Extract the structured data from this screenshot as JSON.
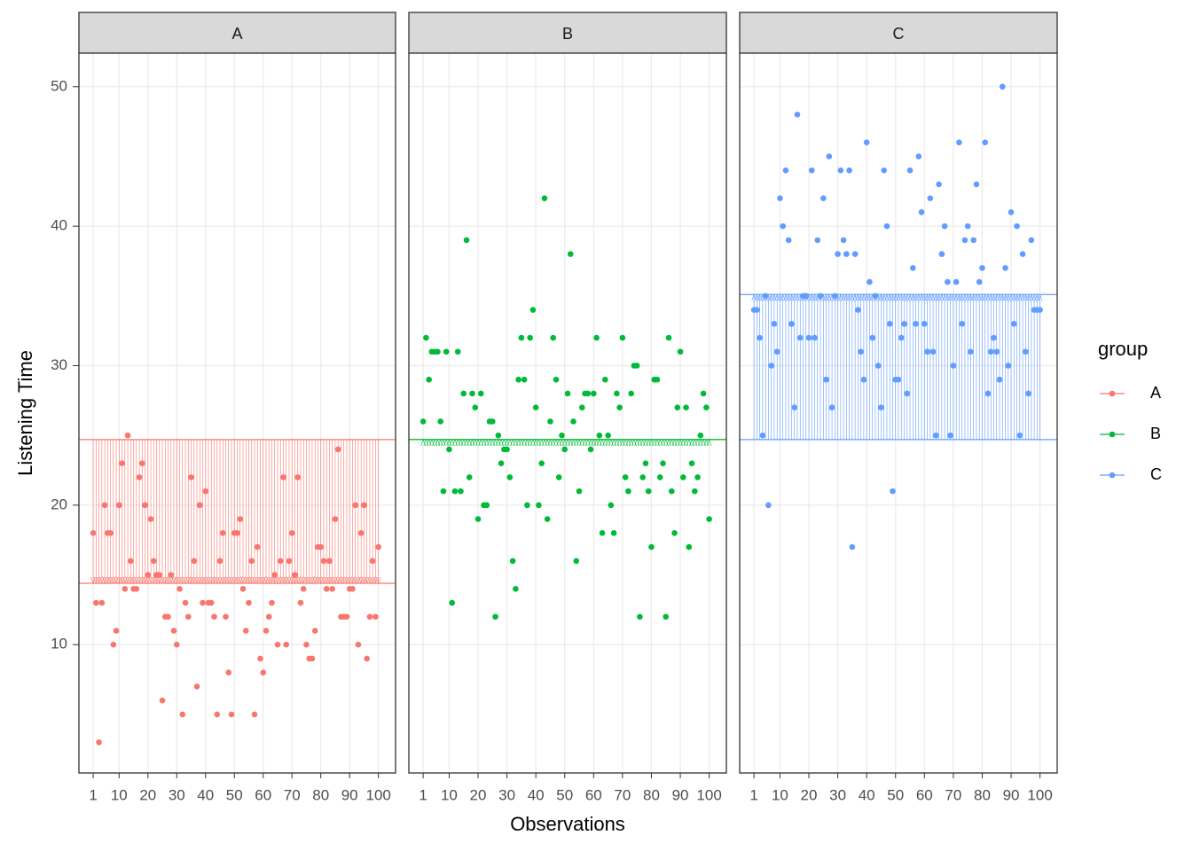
{
  "chart_data": {
    "type": "scatter",
    "x_label": "Observations",
    "y_label": "Listening Time",
    "legend_title": "group",
    "xlim": [
      -3.95,
      105.95
    ],
    "ylim": [
      0.8,
      52.4
    ],
    "xticks": [
      1,
      10,
      20,
      30,
      40,
      50,
      60,
      70,
      80,
      90,
      100
    ],
    "yticks": [
      10,
      20,
      30,
      40,
      50
    ],
    "grid": true,
    "grand_mean": 24.7,
    "x": [
      1,
      2,
      3,
      4,
      5,
      6,
      7,
      8,
      9,
      10,
      11,
      12,
      13,
      14,
      15,
      16,
      17,
      18,
      19,
      20,
      21,
      22,
      23,
      24,
      25,
      26,
      27,
      28,
      29,
      30,
      31,
      32,
      33,
      34,
      35,
      36,
      37,
      38,
      39,
      40,
      41,
      42,
      43,
      44,
      45,
      46,
      47,
      48,
      49,
      50,
      51,
      52,
      53,
      54,
      55,
      56,
      57,
      58,
      59,
      60,
      61,
      62,
      63,
      64,
      65,
      66,
      67,
      68,
      69,
      70,
      71,
      72,
      73,
      74,
      75,
      76,
      77,
      78,
      79,
      80,
      81,
      82,
      83,
      84,
      85,
      86,
      87,
      88,
      89,
      90,
      91,
      92,
      93,
      94,
      95,
      96,
      97,
      98,
      99,
      100
    ],
    "panels": [
      {
        "name": "A",
        "color": "#F8766D",
        "mean": 14.4,
        "values": [
          18,
          13,
          3,
          13,
          20,
          18,
          18,
          10,
          11,
          20,
          23,
          14,
          25,
          16,
          14,
          14,
          22,
          23,
          20,
          15,
          19,
          16,
          15,
          15,
          6,
          12,
          12,
          15,
          11,
          10,
          14,
          5,
          13,
          12,
          22,
          16,
          7,
          20,
          13,
          21,
          13,
          13,
          12,
          5,
          16,
          18,
          12,
          8,
          5,
          18,
          18,
          19,
          14,
          11,
          13,
          16,
          5,
          17,
          9,
          8,
          11,
          12,
          13,
          15,
          10,
          16,
          22,
          10,
          16,
          18,
          15,
          22,
          13,
          14,
          10,
          9,
          9,
          11,
          17,
          17,
          16,
          14,
          16,
          14,
          19,
          24,
          12,
          12,
          12,
          14,
          14,
          20,
          10,
          18,
          20,
          9,
          12,
          16,
          12,
          17
        ]
      },
      {
        "name": "B",
        "color": "#00BA38",
        "mean": 24.7,
        "values": [
          26,
          32,
          29,
          31,
          31,
          31,
          26,
          21,
          31,
          24,
          13,
          21,
          31,
          21,
          28,
          39,
          22,
          28,
          27,
          19,
          28,
          20,
          20,
          26,
          26,
          12,
          25,
          23,
          24,
          24,
          22,
          16,
          14,
          29,
          32,
          29,
          20,
          32,
          34,
          27,
          20,
          23,
          42,
          19,
          26,
          32,
          29,
          22,
          25,
          24,
          28,
          38,
          26,
          16,
          21,
          27,
          28,
          28,
          24,
          28,
          32,
          25,
          18,
          29,
          25,
          20,
          18,
          28,
          27,
          32,
          22,
          21,
          28,
          30,
          30,
          12,
          22,
          23,
          21,
          17,
          29,
          29,
          22,
          23,
          12,
          32,
          21,
          18,
          27,
          31,
          22,
          27,
          17,
          23,
          21,
          22,
          25,
          28,
          27,
          19
        ]
      },
      {
        "name": "C",
        "color": "#619CFF",
        "mean": 35.1,
        "values": [
          34,
          34,
          32,
          25,
          35,
          20,
          30,
          33,
          31,
          42,
          40,
          44,
          39,
          33,
          27,
          48,
          32,
          35,
          35,
          32,
          44,
          32,
          39,
          35,
          42,
          29,
          45,
          27,
          35,
          38,
          44,
          39,
          38,
          44,
          17,
          38,
          34,
          31,
          29,
          46,
          36,
          32,
          35,
          30,
          27,
          44,
          40,
          33,
          21,
          29,
          29,
          32,
          33,
          28,
          44,
          37,
          33,
          45,
          41,
          33,
          31,
          42,
          31,
          25,
          43,
          38,
          40,
          36,
          25,
          30,
          36,
          46,
          33,
          39,
          40,
          31,
          39,
          43,
          36,
          37,
          46,
          28,
          31,
          32,
          31,
          29,
          50,
          37,
          30,
          41,
          33,
          40,
          25,
          38,
          31,
          28,
          39,
          34,
          34,
          34
        ]
      }
    ]
  }
}
